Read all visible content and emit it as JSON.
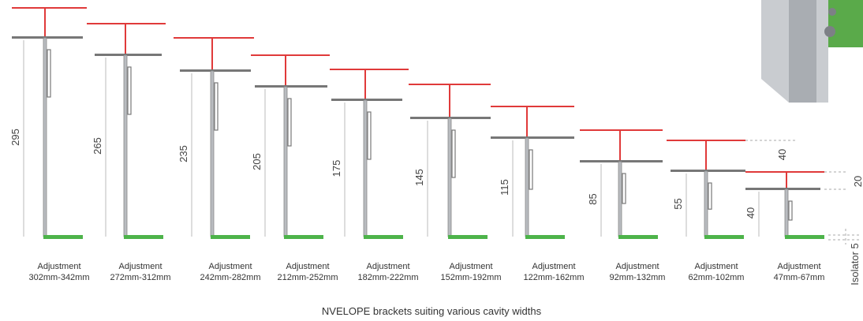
{
  "brackets": [
    {
      "height": "295",
      "adjustment": "Adjustment",
      "range": "302mm-342mm"
    },
    {
      "height": "265",
      "adjustment": "Adjustment",
      "range": "272mm-312mm"
    },
    {
      "height": "235",
      "adjustment": "Adjustment",
      "range": "242mm-282mm"
    },
    {
      "height": "205",
      "adjustment": "Adjustment",
      "range": "212mm-252mm"
    },
    {
      "height": "175",
      "adjustment": "Adjustment",
      "range": "182mm-222mm"
    },
    {
      "height": "145",
      "adjustment": "Adjustment",
      "range": "152mm-192mm"
    },
    {
      "height": "115",
      "adjustment": "Adjustment",
      "range": "122mm-162mm"
    },
    {
      "height": "85",
      "adjustment": "Adjustment",
      "range": "92mm-132mm"
    },
    {
      "height": "55",
      "adjustment": "Adjustment",
      "range": "62mm-102mm"
    },
    {
      "height": "40",
      "adjustment": "Adjustment",
      "range": "47mm-67mm"
    }
  ],
  "dimensions": {
    "offset": "40",
    "rail": "20",
    "isolator": "Isolator 5"
  },
  "caption": "NVELOPE brackets suiting various cavity widths"
}
